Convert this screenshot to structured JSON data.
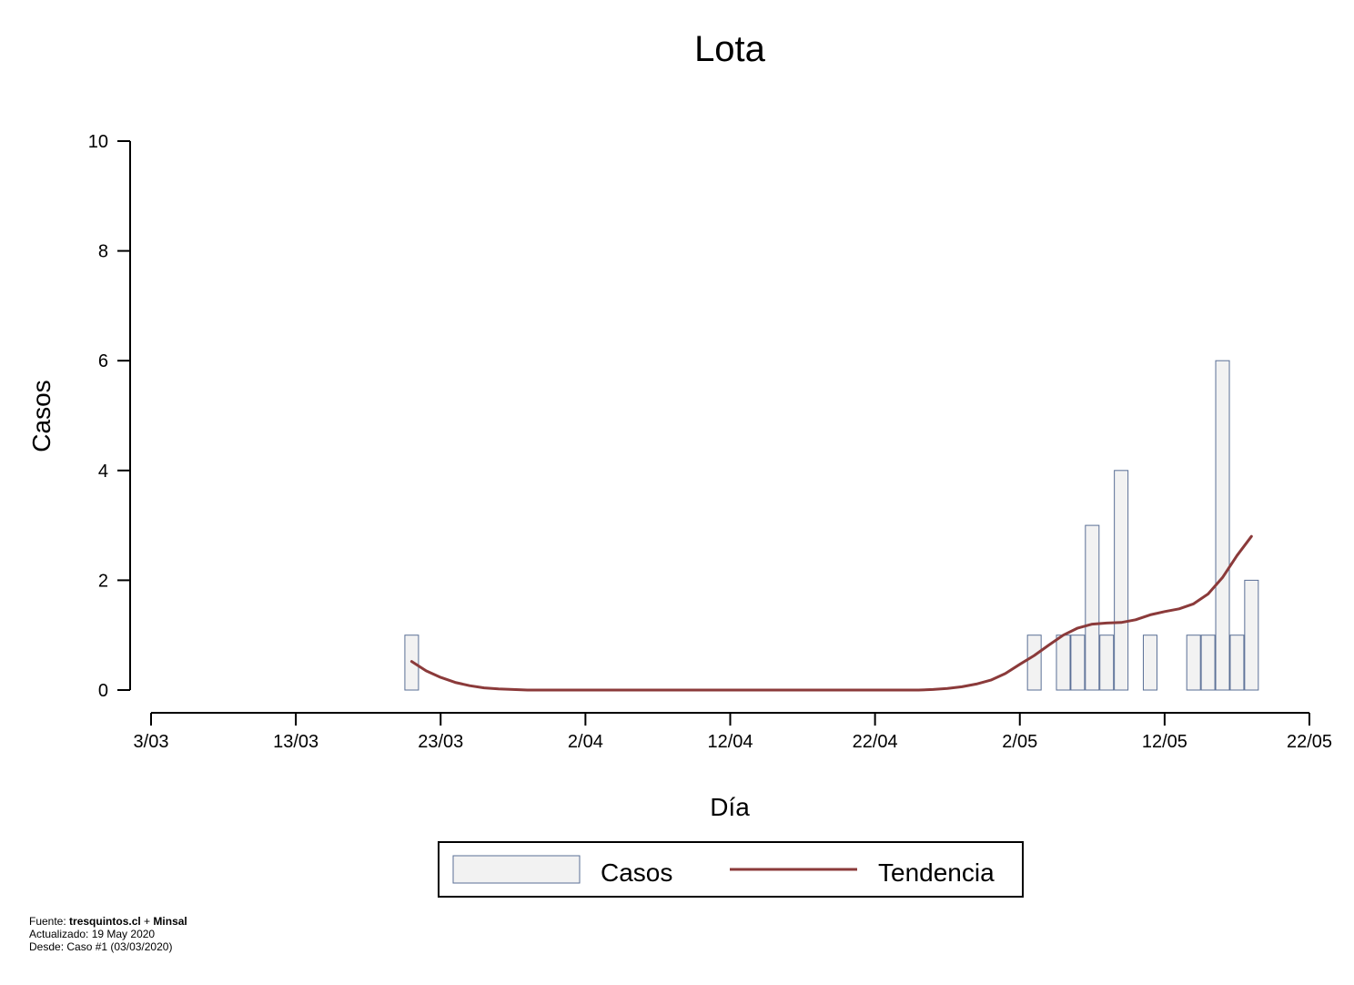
{
  "chart_data": {
    "type": "bar",
    "title": "Lota",
    "xlabel": "Día",
    "ylabel": "Casos",
    "x_ticks": [
      "3/03",
      "13/03",
      "23/03",
      "2/04",
      "12/04",
      "22/04",
      "2/05",
      "12/05",
      "22/05"
    ],
    "y_ticks": [
      "0",
      "2",
      "4",
      "6",
      "8",
      "10"
    ],
    "ylim": [
      0,
      10
    ],
    "x_range": [
      "3/03",
      "22/05"
    ],
    "grid": false,
    "legend_position": "bottom-center",
    "legend": {
      "bars_label": "Casos",
      "line_label": "Tendencia"
    },
    "colors": {
      "bar_fill": "#f2f2f2",
      "bar_stroke": "#5a6f96",
      "line": "#8b3a3a"
    },
    "series": [
      {
        "name": "Casos",
        "kind": "bar",
        "dates": [
          "21/03",
          "3/05",
          "5/05",
          "6/05",
          "7/05",
          "8/05",
          "9/05",
          "11/05",
          "14/05",
          "15/05",
          "16/05",
          "17/05",
          "18/05"
        ],
        "values": [
          1,
          1,
          1,
          1,
          3,
          1,
          4,
          1,
          1,
          1,
          6,
          1,
          2
        ]
      },
      {
        "name": "Tendencia",
        "kind": "line",
        "dates": [
          "21/03",
          "22/03",
          "23/03",
          "24/03",
          "25/03",
          "26/03",
          "27/03",
          "28/03",
          "29/03",
          "30/03",
          "31/03",
          "1/04",
          "5/04",
          "10/04",
          "15/04",
          "20/04",
          "25/04",
          "26/04",
          "27/04",
          "28/04",
          "29/04",
          "30/04",
          "1/05",
          "2/05",
          "3/05",
          "4/05",
          "5/05",
          "6/05",
          "7/05",
          "8/05",
          "9/05",
          "10/05",
          "11/05",
          "12/05",
          "13/05",
          "14/05",
          "15/05",
          "16/05",
          "17/05",
          "18/05"
        ],
        "values": [
          0.52,
          0.35,
          0.23,
          0.14,
          0.08,
          0.04,
          0.02,
          0.01,
          0.0,
          0.0,
          0.0,
          0.0,
          0.0,
          0.0,
          0.0,
          0.0,
          0.0,
          0.01,
          0.03,
          0.06,
          0.11,
          0.18,
          0.3,
          0.47,
          0.63,
          0.82,
          1.0,
          1.13,
          1.2,
          1.22,
          1.23,
          1.28,
          1.37,
          1.43,
          1.48,
          1.57,
          1.75,
          2.05,
          2.45,
          2.8
        ]
      }
    ]
  },
  "footer": {
    "source_prefix": "Fuente: ",
    "source_site": "tresquintos.cl",
    "source_join": " + ",
    "source_org": "Minsal",
    "updated": "Actualizado: 19 May 2020",
    "since": "Desde: Caso #1  (03/03/2020)"
  }
}
